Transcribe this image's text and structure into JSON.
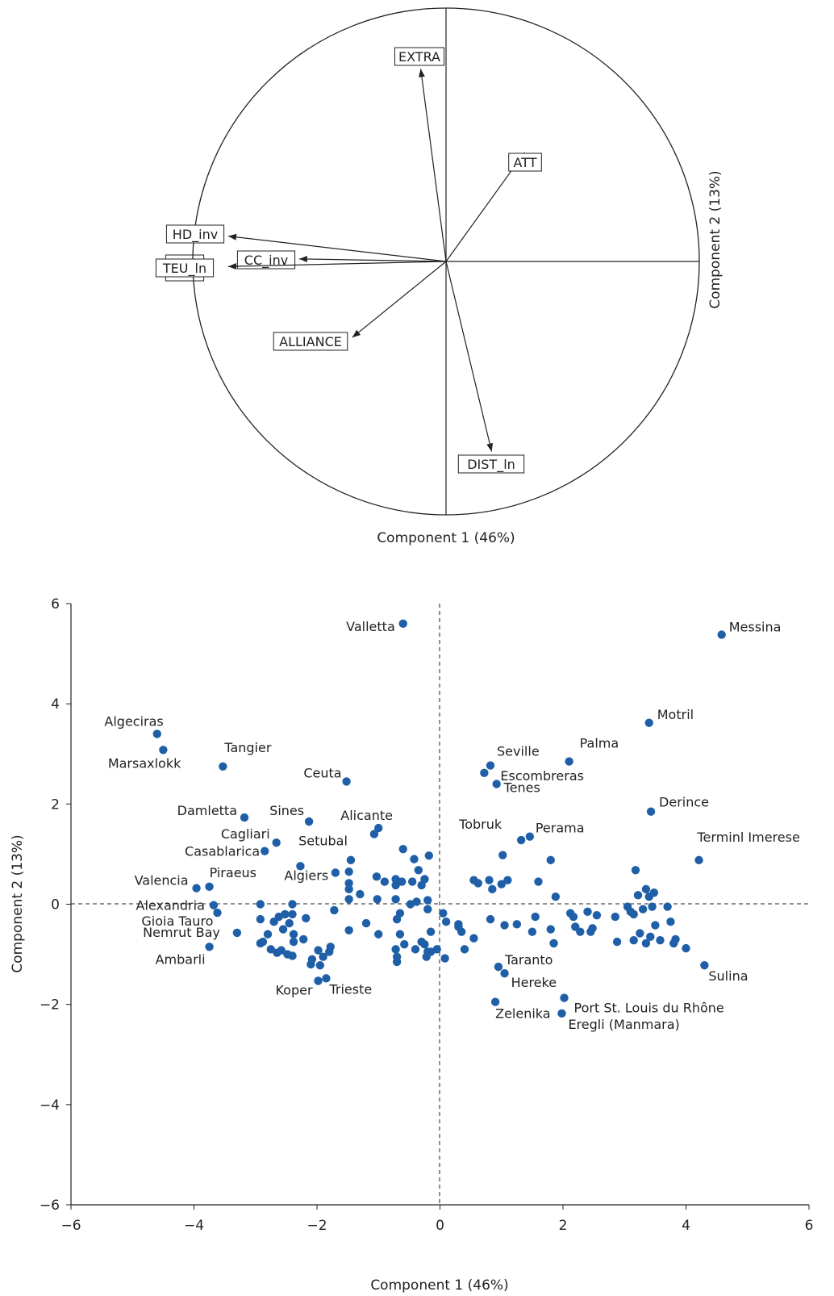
{
  "chart_data": [
    {
      "type": "biplot",
      "xlabel": "Component 1 (46%)",
      "ylabel": "Component 2 (13%)",
      "vectors": [
        {
          "label": "EXTRA",
          "x": -0.1,
          "y": 0.76
        },
        {
          "label": "ATT",
          "x": 0.31,
          "y": 0.43
        },
        {
          "label": "HD_inv",
          "x": -0.86,
          "y": 0.1
        },
        {
          "label": "CC_inv",
          "x": -0.58,
          "y": 0.01
        },
        {
          "label": "TEU_ln",
          "x": -0.86,
          "y": -0.02
        },
        {
          "label": "ALLIANCE",
          "x": -0.37,
          "y": -0.3
        },
        {
          "label": "DIST_ln",
          "x": 0.18,
          "y": -0.75
        }
      ]
    },
    {
      "type": "scatter",
      "xlabel": "Component 1 (46%)",
      "ylabel": "Component 2 (13%)",
      "xlim": [
        -6,
        6
      ],
      "ylim": [
        -6,
        6
      ],
      "xticks": [
        "−6",
        "−4",
        "−2",
        "0",
        "2",
        "4",
        "6"
      ],
      "yticks": [
        "−6",
        "−4",
        "−2",
        "0",
        "2",
        "4",
        "6"
      ],
      "point_color": "#1f5fa8",
      "labeled_points": [
        {
          "label": "Messina",
          "x": 4.58,
          "y": 5.38
        },
        {
          "label": "Valletta",
          "x": -0.6,
          "y": 5.6
        },
        {
          "label": "Motril",
          "x": 3.4,
          "y": 3.62
        },
        {
          "label": "Algeciras",
          "x": -4.6,
          "y": 3.4
        },
        {
          "label": "Marsaxlokk",
          "x": -4.5,
          "y": 3.08
        },
        {
          "label": "Tangier",
          "x": -3.53,
          "y": 2.75
        },
        {
          "label": "Palma",
          "x": 2.1,
          "y": 2.85
        },
        {
          "label": "Seville",
          "x": 0.82,
          "y": 2.77
        },
        {
          "label": "Escombreras",
          "x": 0.72,
          "y": 2.62
        },
        {
          "label": "Tenes",
          "x": 0.92,
          "y": 2.4
        },
        {
          "label": "Ceuta",
          "x": -1.52,
          "y": 2.45
        },
        {
          "label": "Derince",
          "x": 3.43,
          "y": 1.85
        },
        {
          "label": "Damletta",
          "x": -3.18,
          "y": 1.73
        },
        {
          "label": "Sines",
          "x": -2.13,
          "y": 1.65
        },
        {
          "label": "Alicante",
          "x": -1.0,
          "y": 1.52
        },
        {
          "label": "Setubal",
          "x": -1.07,
          "y": 1.4
        },
        {
          "label": "Perama",
          "x": 1.46,
          "y": 1.35
        },
        {
          "label": "Tobruk",
          "x": 1.32,
          "y": 1.28
        },
        {
          "label": "Cagliari",
          "x": -2.66,
          "y": 1.23
        },
        {
          "label": "Casablarica",
          "x": -2.85,
          "y": 1.06
        },
        {
          "label": "Terminl Imerese",
          "x": 4.21,
          "y": 0.88
        },
        {
          "label": "Algiers",
          "x": -2.27,
          "y": 0.76
        },
        {
          "label": "Piraeus",
          "x": -3.75,
          "y": 0.35
        },
        {
          "label": "Valencia",
          "x": -3.96,
          "y": 0.32
        },
        {
          "label": "Alexandria",
          "x": -3.68,
          "y": -0.02
        },
        {
          "label": "Gioia Tauro",
          "x": -3.62,
          "y": -0.17
        },
        {
          "label": "Nemrut Bay",
          "x": -3.3,
          "y": -0.57
        },
        {
          "label": "Ambarli",
          "x": -3.75,
          "y": -0.85
        },
        {
          "label": "Taranto",
          "x": 0.95,
          "y": -1.25
        },
        {
          "label": "Hereke",
          "x": 1.05,
          "y": -1.38
        },
        {
          "label": "Sulina",
          "x": 4.3,
          "y": -1.22
        },
        {
          "label": "Koper",
          "x": -1.98,
          "y": -1.53
        },
        {
          "label": "Trieste",
          "x": -1.85,
          "y": -1.48
        },
        {
          "label": "Port St. Louis du Rhône",
          "x": 2.02,
          "y": -1.87
        },
        {
          "label": "Zelenika",
          "x": 0.9,
          "y": -1.95
        },
        {
          "label": "Eregli (Manmara)",
          "x": 1.98,
          "y": -2.18
        }
      ],
      "points": [
        [
          -0.6,
          1.1
        ],
        [
          -0.42,
          0.9
        ],
        [
          -0.18,
          0.97
        ],
        [
          -0.62,
          0.45
        ],
        [
          -0.72,
          0.5
        ],
        [
          -0.45,
          0.45
        ],
        [
          -0.9,
          0.45
        ],
        [
          -1.03,
          0.55
        ],
        [
          -0.72,
          0.38
        ],
        [
          -0.25,
          0.5
        ],
        [
          -0.3,
          0.38
        ],
        [
          -0.35,
          0.68
        ],
        [
          -1.3,
          0.2
        ],
        [
          -1.48,
          0.3
        ],
        [
          -1.48,
          0.1
        ],
        [
          -1.48,
          0.42
        ],
        [
          -1.48,
          0.65
        ],
        [
          -1.7,
          0.63
        ],
        [
          -1.45,
          0.88
        ],
        [
          -1.02,
          0.1
        ],
        [
          -0.72,
          0.1
        ],
        [
          -0.38,
          0.05
        ],
        [
          -0.2,
          0.08
        ],
        [
          -0.7,
          -0.3
        ],
        [
          -0.65,
          -0.18
        ],
        [
          -0.48,
          0.0
        ],
        [
          -0.2,
          -0.1
        ],
        [
          -0.58,
          -0.8
        ],
        [
          -0.3,
          -0.75
        ],
        [
          -0.4,
          -0.9
        ],
        [
          -0.2,
          -0.95
        ],
        [
          -0.72,
          -0.9
        ],
        [
          -0.7,
          -1.05
        ],
        [
          -0.7,
          -1.15
        ],
        [
          -0.15,
          -0.95
        ],
        [
          -0.22,
          -1.05
        ],
        [
          -0.05,
          -0.9
        ],
        [
          0.05,
          -0.18
        ],
        [
          0.1,
          -0.35
        ],
        [
          0.3,
          -0.4
        ],
        [
          0.35,
          -0.55
        ],
        [
          0.3,
          -0.45
        ],
        [
          0.55,
          -0.68
        ],
        [
          0.4,
          -0.9
        ],
        [
          0.08,
          -1.08
        ],
        [
          -0.15,
          -0.55
        ],
        [
          -0.25,
          -0.8
        ],
        [
          -0.65,
          -0.6
        ],
        [
          -1.0,
          -0.6
        ],
        [
          -1.2,
          -0.38
        ],
        [
          -1.48,
          -0.52
        ],
        [
          -1.72,
          -0.12
        ],
        [
          -1.78,
          -0.85
        ],
        [
          -1.8,
          -0.95
        ],
        [
          -1.9,
          -1.05
        ],
        [
          -1.98,
          -0.92
        ],
        [
          -2.08,
          -1.1
        ],
        [
          -2.1,
          -1.2
        ],
        [
          -1.95,
          -1.22
        ],
        [
          -2.22,
          -0.7
        ],
        [
          -2.38,
          -0.75
        ],
        [
          -2.4,
          -1.03
        ],
        [
          -2.48,
          -1.0
        ],
        [
          -2.58,
          -0.92
        ],
        [
          -2.65,
          -0.97
        ],
        [
          -2.75,
          -0.9
        ],
        [
          -2.38,
          -0.6
        ],
        [
          -2.55,
          -0.5
        ],
        [
          -2.7,
          -0.35
        ],
        [
          -2.8,
          -0.6
        ],
        [
          -2.88,
          -0.75
        ],
        [
          -2.92,
          -0.78
        ],
        [
          -2.92,
          -0.3
        ],
        [
          -2.92,
          0.0
        ],
        [
          -2.45,
          -0.38
        ],
        [
          -2.52,
          -0.2
        ],
        [
          -2.18,
          -0.28
        ],
        [
          -2.4,
          0.0
        ],
        [
          -2.4,
          -0.2
        ],
        [
          -2.62,
          -0.25
        ],
        [
          0.55,
          0.48
        ],
        [
          0.62,
          0.42
        ],
        [
          0.8,
          0.48
        ],
        [
          0.85,
          0.3
        ],
        [
          1.0,
          0.4
        ],
        [
          1.1,
          0.48
        ],
        [
          1.02,
          0.98
        ],
        [
          1.6,
          0.45
        ],
        [
          1.8,
          0.88
        ],
        [
          1.88,
          0.15
        ],
        [
          0.82,
          -0.3
        ],
        [
          1.05,
          -0.42
        ],
        [
          1.25,
          -0.4
        ],
        [
          1.5,
          -0.55
        ],
        [
          1.55,
          -0.25
        ],
        [
          1.8,
          -0.5
        ],
        [
          1.85,
          -0.78
        ],
        [
          2.12,
          -0.18
        ],
        [
          2.17,
          -0.25
        ],
        [
          2.2,
          -0.45
        ],
        [
          2.28,
          -0.55
        ],
        [
          2.4,
          -0.15
        ],
        [
          2.45,
          -0.55
        ],
        [
          2.48,
          -0.48
        ],
        [
          2.55,
          -0.22
        ],
        [
          2.85,
          -0.25
        ],
        [
          2.88,
          -0.75
        ],
        [
          3.05,
          -0.05
        ],
        [
          3.1,
          -0.15
        ],
        [
          3.15,
          -0.2
        ],
        [
          3.18,
          0.68
        ],
        [
          3.22,
          0.18
        ],
        [
          3.3,
          -0.1
        ],
        [
          3.35,
          0.3
        ],
        [
          3.4,
          0.15
        ],
        [
          3.45,
          -0.05
        ],
        [
          3.48,
          0.23
        ],
        [
          3.15,
          -0.72
        ],
        [
          3.25,
          -0.58
        ],
        [
          3.35,
          -0.78
        ],
        [
          3.42,
          -0.65
        ],
        [
          3.5,
          -0.42
        ],
        [
          3.58,
          -0.72
        ],
        [
          3.7,
          -0.05
        ],
        [
          3.75,
          -0.35
        ],
        [
          3.8,
          -0.78
        ],
        [
          3.83,
          -0.7
        ],
        [
          4.0,
          -0.88
        ]
      ]
    }
  ]
}
